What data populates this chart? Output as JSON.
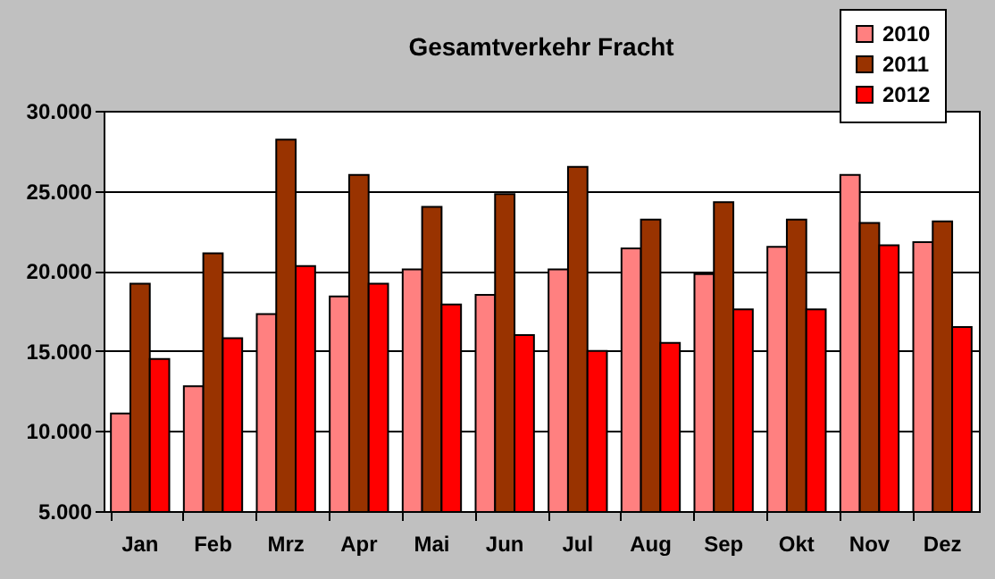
{
  "chart_data": {
    "type": "bar",
    "title": "Gesamtverkehr  Fracht",
    "categories": [
      "Jan",
      "Feb",
      "Mrz",
      "Apr",
      "Mai",
      "Jun",
      "Jul",
      "Aug",
      "Sep",
      "Okt",
      "Nov",
      "Dez"
    ],
    "series": [
      {
        "name": "2010",
        "color": "#ff8080",
        "values": [
          11100,
          12800,
          17300,
          18400,
          20100,
          18500,
          20100,
          21400,
          19800,
          21500,
          26000,
          21800
        ]
      },
      {
        "name": "2011",
        "color": "#993300",
        "values": [
          19200,
          21100,
          28200,
          26000,
          24000,
          24800,
          26500,
          23200,
          24300,
          23200,
          23000,
          23100
        ]
      },
      {
        "name": "2012",
        "color": "#ff0000",
        "values": [
          14500,
          15800,
          20300,
          19200,
          17900,
          16000,
          15000,
          15500,
          17600,
          17600,
          21600,
          16500
        ]
      }
    ],
    "ylim": [
      5000,
      30000
    ],
    "yticks": [
      {
        "value": 5000,
        "label": "5.000"
      },
      {
        "value": 10000,
        "label": "10.000"
      },
      {
        "value": 15000,
        "label": "15.000"
      },
      {
        "value": 20000,
        "label": "20.000"
      },
      {
        "value": 25000,
        "label": "25.000"
      },
      {
        "value": 30000,
        "label": "30.000"
      }
    ],
    "grid": "y",
    "legend": "top right"
  }
}
